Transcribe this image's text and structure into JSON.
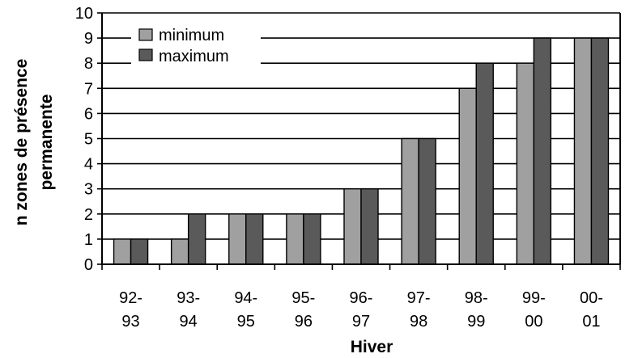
{
  "chart_data": {
    "type": "bar",
    "title": "",
    "xlabel": "Hiver",
    "ylabel_lines": [
      "n zones de présence",
      "permanente"
    ],
    "ylim": [
      0,
      10
    ],
    "yticks": [
      "0",
      "1",
      "2",
      "3",
      "4",
      "5",
      "6",
      "7",
      "8",
      "9",
      "10"
    ],
    "grid": "horizontal",
    "legend_position": "top-left",
    "categories": [
      [
        "92-",
        "93"
      ],
      [
        "93-",
        "94"
      ],
      [
        "94-",
        "95"
      ],
      [
        "95-",
        "96"
      ],
      [
        "96-",
        "97"
      ],
      [
        "97-",
        "98"
      ],
      [
        "98-",
        "99"
      ],
      [
        "99-",
        "00"
      ],
      [
        "00-",
        "01"
      ]
    ],
    "series": [
      {
        "name": "minimum",
        "color": "#a0a0a0",
        "values": [
          1,
          1,
          2,
          2,
          3,
          5,
          7,
          8,
          9
        ]
      },
      {
        "name": "maximum",
        "color": "#5a5a5a",
        "values": [
          1,
          2,
          2,
          2,
          3,
          5,
          8,
          9,
          9
        ]
      }
    ]
  }
}
